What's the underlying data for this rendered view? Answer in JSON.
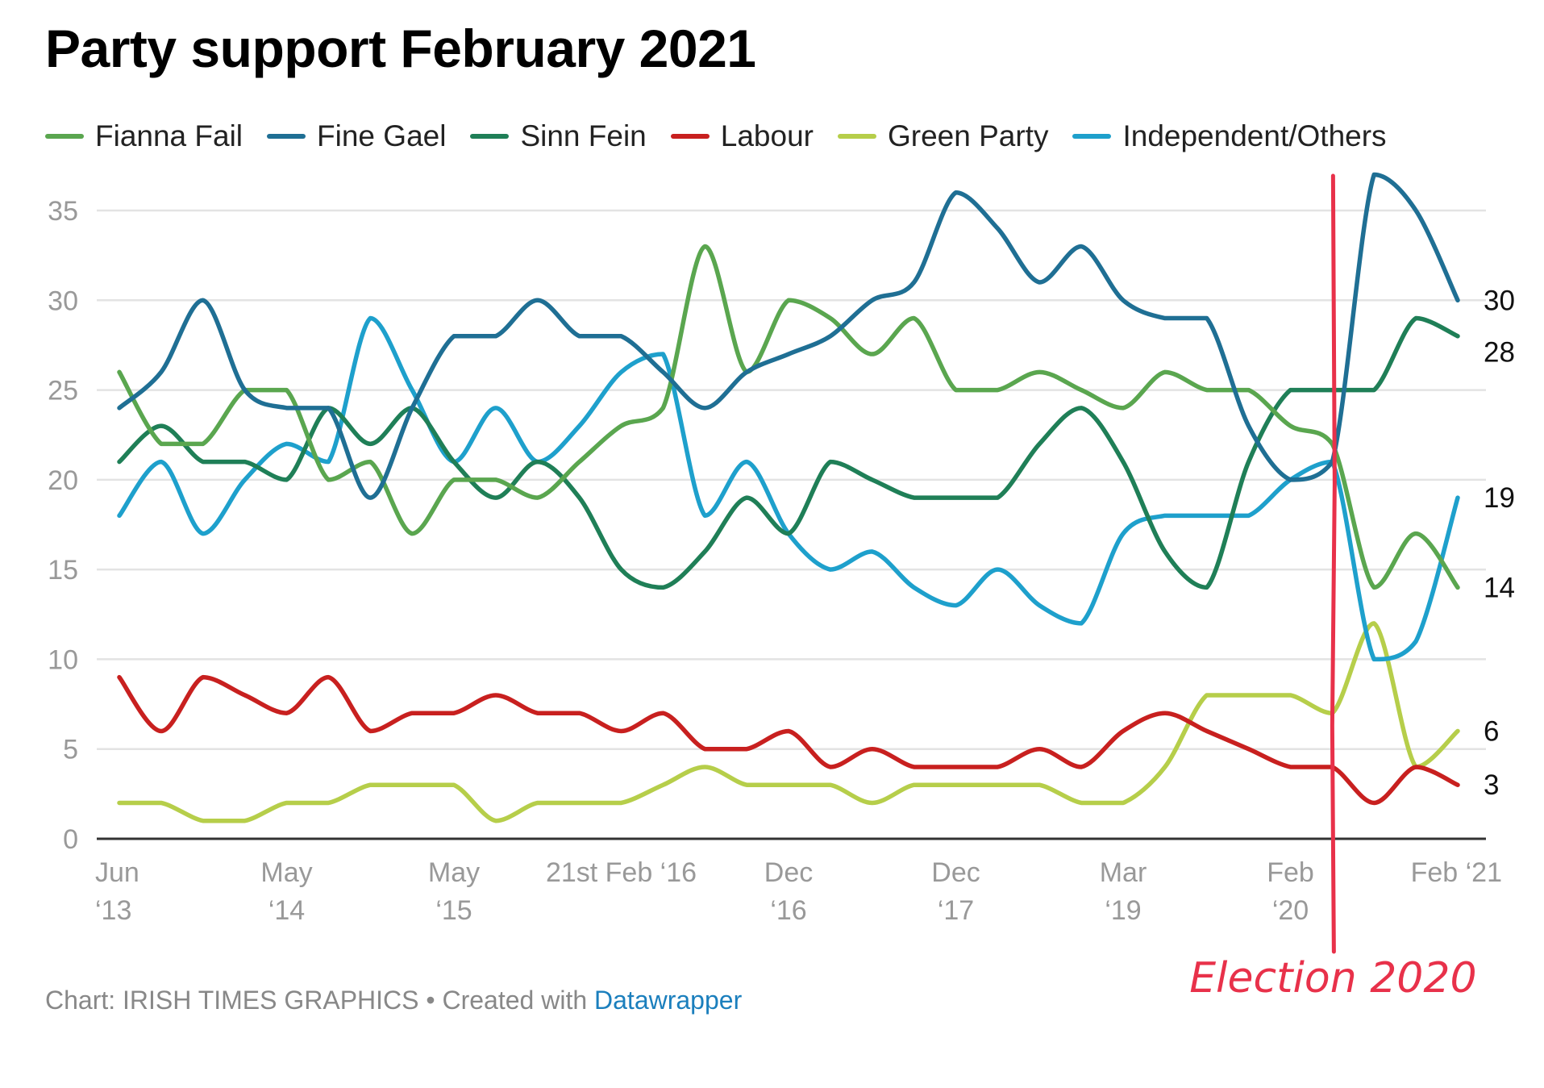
{
  "title": "Party support February 2021",
  "footer": {
    "prefix": "Chart: IRISH TIMES GRAPHICS • Created with ",
    "brand": "Datawrapper"
  },
  "annotation": {
    "label": "Election 2020",
    "x_index": 29,
    "color": "#e8314a"
  },
  "chart_data": {
    "type": "line",
    "title": "Party support February 2021",
    "xlabel": "",
    "ylabel": "",
    "ylim": [
      0,
      35
    ],
    "yticks": [
      0,
      5,
      10,
      15,
      20,
      25,
      30,
      35
    ],
    "grid": true,
    "legend": "top",
    "x": [
      0,
      1,
      2,
      3,
      4,
      5,
      6,
      7,
      8,
      9,
      10,
      11,
      12,
      13,
      14,
      15,
      16,
      17,
      18,
      19,
      20,
      21,
      22,
      23,
      24,
      25,
      26,
      27,
      28,
      29,
      30,
      31,
      32
    ],
    "x_tick_labels": [
      {
        "x": 0,
        "lines": [
          "Jun",
          "‘13"
        ]
      },
      {
        "x": 4,
        "lines": [
          "May",
          "‘14"
        ]
      },
      {
        "x": 8,
        "lines": [
          "May",
          "‘15"
        ]
      },
      {
        "x": 12,
        "lines": [
          "21st Feb ‘16"
        ]
      },
      {
        "x": 16,
        "lines": [
          "Dec",
          "‘16"
        ]
      },
      {
        "x": 20,
        "lines": [
          "Dec",
          "‘17"
        ]
      },
      {
        "x": 24,
        "lines": [
          "Mar",
          "‘19"
        ]
      },
      {
        "x": 28,
        "lines": [
          "Feb",
          "‘20"
        ]
      },
      {
        "x": 32,
        "lines": [
          "Feb ‘21"
        ]
      }
    ],
    "series": [
      {
        "name": "Fianna Fail",
        "color": "#5aa64f",
        "values": [
          26,
          22,
          22,
          25,
          25,
          20,
          21,
          17,
          20,
          20,
          19,
          21,
          23,
          24,
          33,
          26,
          30,
          29,
          27,
          29,
          25,
          25,
          26,
          25,
          24,
          26,
          25,
          25,
          23,
          22,
          14,
          17,
          14
        ]
      },
      {
        "name": "Fine Gael",
        "color": "#1f6f94",
        "values": [
          24,
          26,
          30,
          25,
          24,
          24,
          19,
          24,
          28,
          28,
          30,
          28,
          28,
          26,
          24,
          26,
          27,
          28,
          30,
          31,
          36,
          34,
          31,
          33,
          30,
          29,
          29,
          23,
          20,
          21,
          37,
          35,
          30
        ]
      },
      {
        "name": "Sinn Fein",
        "color": "#1f7f57",
        "values": [
          21,
          23,
          21,
          21,
          20,
          24,
          22,
          24,
          21,
          19,
          21,
          19,
          15,
          14,
          16,
          19,
          17,
          21,
          20,
          19,
          19,
          19,
          22,
          24,
          21,
          16,
          14,
          21,
          25,
          25,
          25,
          29,
          28
        ]
      },
      {
        "name": "Labour",
        "color": "#c8201f",
        "values": [
          9,
          6,
          9,
          8,
          7,
          9,
          6,
          7,
          7,
          8,
          7,
          7,
          6,
          7,
          5,
          5,
          6,
          4,
          5,
          4,
          4,
          4,
          5,
          4,
          6,
          7,
          6,
          5,
          4,
          4,
          2,
          4,
          3
        ]
      },
      {
        "name": "Green Party",
        "color": "#b6ce4a",
        "values": [
          2,
          2,
          1,
          1,
          2,
          2,
          3,
          3,
          3,
          1,
          2,
          2,
          2,
          3,
          4,
          3,
          3,
          3,
          2,
          3,
          3,
          3,
          3,
          2,
          2,
          4,
          8,
          8,
          8,
          7,
          12,
          4,
          6
        ]
      },
      {
        "name": "Independent/Others",
        "color": "#1ea0cc",
        "values": [
          18,
          21,
          17,
          20,
          22,
          21,
          29,
          25,
          21,
          24,
          21,
          23,
          26,
          27,
          18,
          21,
          17,
          15,
          16,
          14,
          13,
          15,
          13,
          12,
          17,
          18,
          18,
          18,
          20,
          21,
          10,
          11,
          19
        ]
      }
    ],
    "end_labels": [
      {
        "series": "Fine Gael",
        "text": "30"
      },
      {
        "series": "Sinn Fein",
        "text": "28"
      },
      {
        "series": "Independent/Others",
        "text": "19"
      },
      {
        "series": "Fianna Fail",
        "text": "14"
      },
      {
        "series": "Green Party",
        "text": "6"
      },
      {
        "series": "Labour",
        "text": "3"
      }
    ]
  }
}
